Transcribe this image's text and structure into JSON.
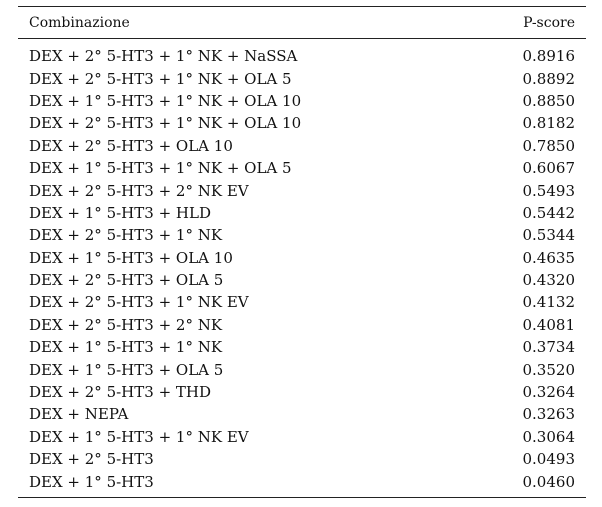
{
  "table": {
    "headers": {
      "combination": "Combinazione",
      "score": "P-score"
    },
    "rows": [
      {
        "combination": "DEX + 2° 5-HT3 + 1° NK + NaSSA",
        "score": "0.8916"
      },
      {
        "combination": "DEX + 2° 5-HT3 + 1° NK + OLA 5",
        "score": "0.8892"
      },
      {
        "combination": "DEX + 1° 5-HT3 + 1° NK + OLA 10",
        "score": "0.8850"
      },
      {
        "combination": "DEX + 2° 5-HT3 + 1° NK + OLA 10",
        "score": "0.8182"
      },
      {
        "combination": "DEX + 2° 5-HT3 + OLA 10",
        "score": "0.7850"
      },
      {
        "combination": "DEX + 1° 5-HT3 + 1° NK + OLA 5",
        "score": "0.6067"
      },
      {
        "combination": "DEX + 2° 5-HT3 + 2° NK EV",
        "score": "0.5493"
      },
      {
        "combination": "DEX + 1° 5-HT3 + HLD",
        "score": "0.5442"
      },
      {
        "combination": "DEX + 2° 5-HT3 + 1° NK",
        "score": "0.5344"
      },
      {
        "combination": "DEX + 1° 5-HT3 + OLA 10",
        "score": "0.4635"
      },
      {
        "combination": "DEX + 2° 5-HT3 + OLA 5",
        "score": "0.4320"
      },
      {
        "combination": "DEX + 2° 5-HT3 + 1° NK EV",
        "score": "0.4132"
      },
      {
        "combination": "DEX + 2° 5-HT3 + 2° NK",
        "score": "0.4081"
      },
      {
        "combination": "DEX + 1° 5-HT3 + 1° NK",
        "score": "0.3734"
      },
      {
        "combination": "DEX + 1° 5-HT3 + OLA 5",
        "score": "0.3520"
      },
      {
        "combination": "DEX + 2° 5-HT3 + THD",
        "score": "0.3264"
      },
      {
        "combination": "DEX + NEPA",
        "score": "0.3263"
      },
      {
        "combination": "DEX + 1° 5-HT3 + 1° NK EV",
        "score": "0.3064"
      },
      {
        "combination": "DEX + 2° 5-HT3",
        "score": "0.0493"
      },
      {
        "combination": "DEX + 1° 5-HT3",
        "score": "0.0460"
      }
    ]
  }
}
